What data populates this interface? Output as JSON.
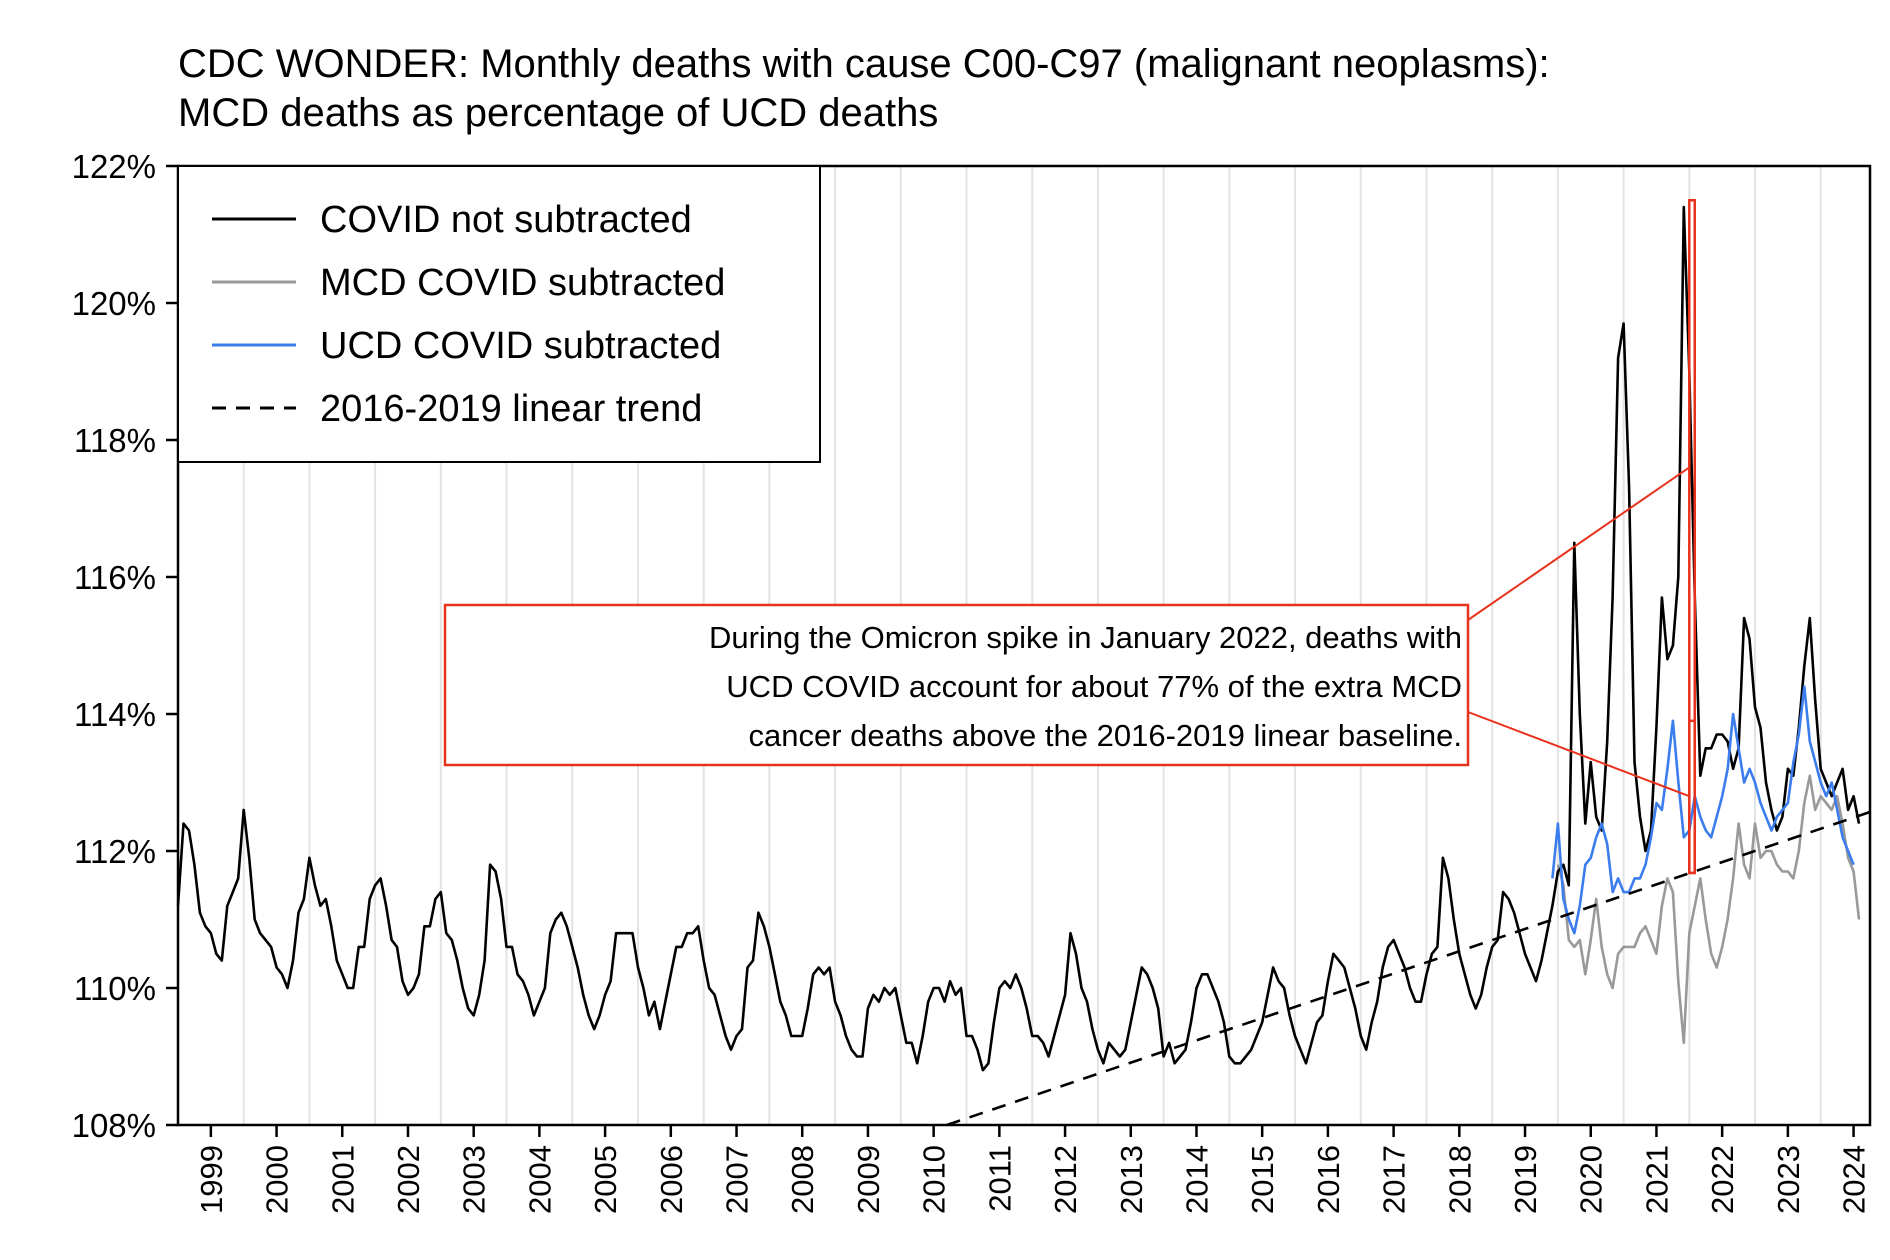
{
  "chart_data": {
    "type": "line",
    "title_lines": [
      "CDC WONDER: Monthly deaths with cause C00-C97 (malignant neoplasms):",
      "MCD deaths as percentage of UCD deaths"
    ],
    "xlabel": "",
    "ylabel": "",
    "x_range": [
      1999.0,
      2024.75
    ],
    "ylim": [
      108,
      122
    ],
    "y_ticks": [
      108,
      110,
      112,
      114,
      116,
      118,
      120,
      122
    ],
    "y_tick_labels": [
      "108%",
      "110%",
      "112%",
      "114%",
      "116%",
      "118%",
      "120%",
      "122%"
    ],
    "x_tick_labels": [
      "1999",
      "2000",
      "2001",
      "2002",
      "2003",
      "2004",
      "2005",
      "2006",
      "2007",
      "2008",
      "2009",
      "2010",
      "2011",
      "2012",
      "2013",
      "2014",
      "2015",
      "2016",
      "2017",
      "2018",
      "2019",
      "2020",
      "2021",
      "2022",
      "2023",
      "2024"
    ],
    "grid": "vertical lines at year starts",
    "legend_position": "top-left",
    "legend": [
      {
        "label": "COVID not subtracted",
        "color": "#000000",
        "style": "solid"
      },
      {
        "label": "MCD COVID subtracted",
        "color": "#999999",
        "style": "solid"
      },
      {
        "label": "UCD COVID subtracted",
        "color": "#3b7ded",
        "style": "solid"
      },
      {
        "label": "2016-2019 linear trend",
        "color": "#000000",
        "style": "dashed"
      }
    ],
    "annotation": {
      "lines": [
        "During the Omicron spike in January 2022, deaths with",
        "UCD COVID account for about 77% of the extra MCD",
        "cancer deaths above the 2016-2019 linear baseline."
      ],
      "border_color": "#e8321e",
      "highlight_x": [
        2022.0,
        2022.083
      ],
      "highlight_big_y": [
        111.68,
        121.5
      ],
      "highlight_small_y": [
        111.68,
        113.9
      ]
    },
    "series": [
      {
        "name": "COVID not subtracted",
        "color": "#000000",
        "x_start": 1999.0,
        "step": 0.08333333,
        "values": [
          111.2,
          112.4,
          112.3,
          111.8,
          111.1,
          110.9,
          110.8,
          110.5,
          110.4,
          111.2,
          111.4,
          111.6,
          112.6,
          111.9,
          111.0,
          110.8,
          110.7,
          110.6,
          110.3,
          110.2,
          110.0,
          110.4,
          111.1,
          111.3,
          111.9,
          111.5,
          111.2,
          111.3,
          110.9,
          110.4,
          110.2,
          110.0,
          110.0,
          110.6,
          110.6,
          111.3,
          111.5,
          111.6,
          111.2,
          110.7,
          110.6,
          110.1,
          109.9,
          110.0,
          110.2,
          110.9,
          110.9,
          111.3,
          111.4,
          110.8,
          110.7,
          110.4,
          110.0,
          109.7,
          109.6,
          109.9,
          110.4,
          111.8,
          111.7,
          111.3,
          110.6,
          110.6,
          110.2,
          110.1,
          109.9,
          109.6,
          109.8,
          110.0,
          110.8,
          111.0,
          111.1,
          110.9,
          110.6,
          110.3,
          109.9,
          109.6,
          109.4,
          109.6,
          109.9,
          110.1,
          110.8,
          110.8,
          110.8,
          110.8,
          110.3,
          110.0,
          109.6,
          109.8,
          109.4,
          109.8,
          110.2,
          110.6,
          110.6,
          110.8,
          110.8,
          110.9,
          110.4,
          110.0,
          109.9,
          109.6,
          109.3,
          109.1,
          109.3,
          109.4,
          110.3,
          110.4,
          111.1,
          110.9,
          110.6,
          110.2,
          109.8,
          109.6,
          109.3,
          109.3,
          109.3,
          109.7,
          110.2,
          110.3,
          110.2,
          110.3,
          109.8,
          109.6,
          109.3,
          109.1,
          109.0,
          109.0,
          109.7,
          109.9,
          109.8,
          110.0,
          109.9,
          110.0,
          109.6,
          109.2,
          109.2,
          108.9,
          109.3,
          109.8,
          110.0,
          110.0,
          109.8,
          110.1,
          109.9,
          110.0,
          109.3,
          109.3,
          109.1,
          108.8,
          108.9,
          109.5,
          110.0,
          110.1,
          110.0,
          110.2,
          110.0,
          109.7,
          109.3,
          109.3,
          109.2,
          109.0,
          109.3,
          109.6,
          109.9,
          110.8,
          110.5,
          110.0,
          109.8,
          109.4,
          109.1,
          108.9,
          109.2,
          109.1,
          109.0,
          109.1,
          109.5,
          109.9,
          110.3,
          110.2,
          110.0,
          109.7,
          109.0,
          109.2,
          108.9,
          109.0,
          109.1,
          109.5,
          110.0,
          110.2,
          110.2,
          110.0,
          109.8,
          109.5,
          109.0,
          108.9,
          108.9,
          109.0,
          109.1,
          109.3,
          109.5,
          109.9,
          110.3,
          110.1,
          110.0,
          109.6,
          109.3,
          109.1,
          108.9,
          109.2,
          109.5,
          109.6,
          110.1,
          110.5,
          110.4,
          110.3,
          110.0,
          109.7,
          109.3,
          109.1,
          109.5,
          109.8,
          110.3,
          110.6,
          110.7,
          110.5,
          110.3,
          110.0,
          109.8,
          109.8,
          110.2,
          110.5,
          110.6,
          111.9,
          111.6,
          111.0,
          110.5,
          110.2,
          109.9,
          109.7,
          109.9,
          110.3,
          110.6,
          110.7,
          111.4,
          111.3,
          111.1,
          110.8,
          110.5,
          110.3,
          110.1,
          110.4,
          110.8,
          111.2,
          111.7,
          111.8,
          111.5,
          116.5,
          114.0,
          112.4,
          113.3,
          112.5,
          112.3,
          113.6,
          115.7,
          119.2,
          119.7,
          117.3,
          113.3,
          112.5,
          112.0,
          112.3,
          113.8,
          115.7,
          114.8,
          115.0,
          116.0,
          121.4,
          119.0,
          115.7,
          113.1,
          113.5,
          113.5,
          113.7,
          113.7,
          113.6,
          113.2,
          113.5,
          115.4,
          115.1,
          114.1,
          113.8,
          113.0,
          112.6,
          112.3,
          112.5,
          113.2,
          113.1,
          113.8,
          114.7,
          115.4,
          114.2,
          113.2,
          113.0,
          112.8,
          113.0,
          113.2,
          112.6,
          112.8,
          112.4
        ]
      },
      {
        "name": "MCD COVID subtracted",
        "color": "#999999",
        "x_start": 2020.0,
        "step": 0.08333333,
        "values": [
          111.8,
          111.5,
          110.7,
          110.6,
          110.7,
          110.2,
          110.7,
          111.3,
          110.6,
          110.2,
          110.0,
          110.5,
          110.6,
          110.6,
          110.6,
          110.8,
          110.9,
          110.7,
          110.5,
          111.2,
          111.6,
          111.4,
          110.1,
          109.2,
          110.8,
          111.2,
          111.6,
          111.0,
          110.5,
          110.3,
          110.6,
          111.0,
          111.6,
          112.4,
          111.8,
          111.6,
          112.4,
          111.9,
          112.0,
          112.0,
          111.8,
          111.7,
          111.7,
          111.6,
          112.0,
          112.7,
          113.1,
          112.6,
          112.8,
          112.7,
          112.6,
          112.8,
          112.4,
          111.9,
          111.7,
          111.0
        ]
      },
      {
        "name": "UCD COVID subtracted",
        "color": "#3b7ded",
        "x_start": 2019.917,
        "step": 0.08333333,
        "values": [
          111.6,
          112.4,
          111.3,
          111.0,
          110.8,
          111.2,
          111.8,
          111.9,
          112.2,
          112.4,
          112.1,
          111.4,
          111.6,
          111.4,
          111.4,
          111.6,
          111.6,
          111.8,
          112.2,
          112.7,
          112.6,
          113.2,
          113.9,
          113.0,
          112.2,
          112.3,
          112.8,
          112.5,
          112.3,
          112.2,
          112.5,
          112.8,
          113.2,
          114.0,
          113.5,
          113.0,
          113.2,
          113.0,
          112.7,
          112.5,
          112.3,
          112.5,
          112.6,
          112.7,
          113.3,
          113.7,
          114.4,
          113.6,
          113.3,
          113.0,
          112.8,
          113.0,
          112.6,
          112.2,
          112.0,
          111.8
        ]
      },
      {
        "name": "2016-2019 linear trend",
        "color": "#000000",
        "style": "dashed",
        "points": [
          [
            2010.7,
            108.0
          ],
          [
            2024.75,
            112.57
          ]
        ]
      }
    ]
  }
}
